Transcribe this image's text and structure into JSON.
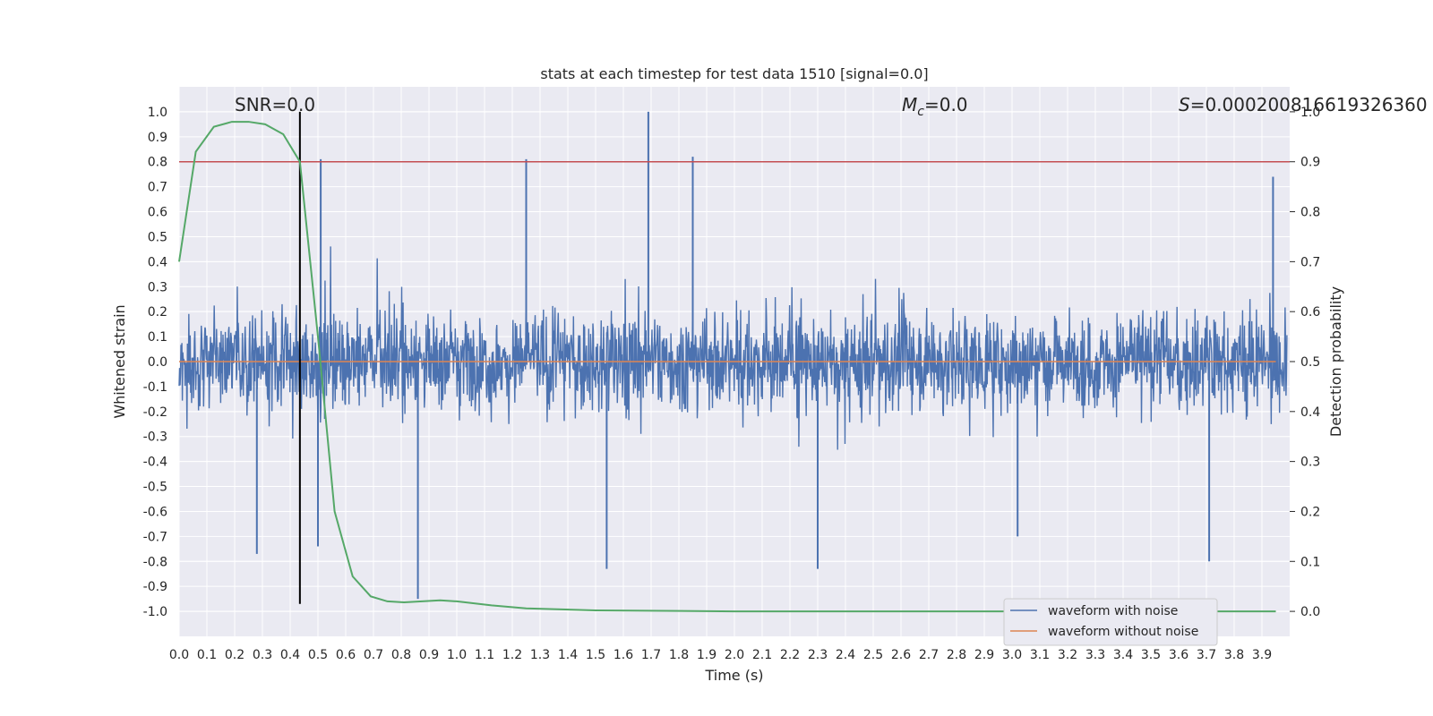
{
  "chart_data": {
    "type": "line",
    "title": "stats at each timestep for test data 1510 [signal=0.0]",
    "xlabel": "Time (s)",
    "ylabel": "Whitened strain",
    "y2label": "Detection probability",
    "xlim": [
      0.0,
      4.0
    ],
    "ylim": [
      -1.1,
      1.1
    ],
    "y2lim": [
      -0.05,
      1.05
    ],
    "x_ticks": [
      "0.0",
      "0.1",
      "0.2",
      "0.3",
      "0.4",
      "0.5",
      "0.6",
      "0.7",
      "0.8",
      "0.9",
      "1.0",
      "1.1",
      "1.2",
      "1.3",
      "1.4",
      "1.5",
      "1.6",
      "1.7",
      "1.8",
      "1.9",
      "2.0",
      "2.1",
      "2.2",
      "2.3",
      "2.4",
      "2.5",
      "2.6",
      "2.7",
      "2.8",
      "2.9",
      "3.0",
      "3.1",
      "3.2",
      "3.3",
      "3.4",
      "3.5",
      "3.6",
      "3.7",
      "3.8",
      "3.9"
    ],
    "y_ticks": [
      "1.0",
      "0.9",
      "0.8",
      "0.7",
      "0.6",
      "0.5",
      "0.4",
      "0.3",
      "0.2",
      "0.1",
      "0.0",
      "-0.1",
      "-0.2",
      "-0.3",
      "-0.4",
      "-0.5",
      "-0.6",
      "-0.7",
      "-0.8",
      "-0.9",
      "-1.0"
    ],
    "y2_ticks": [
      "1.0",
      "0.9",
      "0.8",
      "0.7",
      "0.6",
      "0.5",
      "0.4",
      "0.3",
      "0.2",
      "0.1",
      "0.0"
    ],
    "grid": true,
    "legend_position": "lower-right",
    "annotations": {
      "snr": "SNR=0.0",
      "mc": "M",
      "mc_sub": "c",
      "mc_value": "=0.0",
      "s_symbol": "S",
      "s_value": "=0.000200816619326360"
    },
    "series": [
      {
        "name": "waveform with noise",
        "color": "#4c72b0",
        "axis": "left",
        "noise_amplitude": [
          -0.95,
          1.0
        ],
        "peaks": [
          {
            "x": 1.69,
            "y": 1.0
          },
          {
            "x": 1.25,
            "y": 0.81
          },
          {
            "x": 1.85,
            "y": 0.82
          },
          {
            "x": 0.51,
            "y": 0.81
          },
          {
            "x": 3.94,
            "y": 0.74
          },
          {
            "x": 0.86,
            "y": -0.95
          },
          {
            "x": 2.3,
            "y": -0.83
          },
          {
            "x": 1.54,
            "y": -0.83
          },
          {
            "x": 3.71,
            "y": -0.8
          },
          {
            "x": 0.28,
            "y": -0.77
          },
          {
            "x": 0.5,
            "y": -0.74
          },
          {
            "x": 3.02,
            "y": -0.7
          }
        ]
      },
      {
        "name": "waveform without noise",
        "color": "#dd8452",
        "axis": "left",
        "x": [
          0.0,
          3.95
        ],
        "y": [
          0.0,
          0.0
        ]
      },
      {
        "name": "detection probability",
        "color": "#55a868",
        "axis": "right",
        "x": [
          0.0,
          0.06,
          0.125,
          0.19,
          0.25,
          0.31,
          0.375,
          0.435,
          0.5,
          0.56,
          0.625,
          0.69,
          0.75,
          0.81,
          0.875,
          0.94,
          1.0,
          1.125,
          1.25,
          1.5,
          2.0,
          3.0,
          3.95
        ],
        "y": [
          0.7,
          0.92,
          0.97,
          0.98,
          0.98,
          0.975,
          0.955,
          0.9,
          0.55,
          0.2,
          0.07,
          0.03,
          0.02,
          0.018,
          0.02,
          0.022,
          0.02,
          0.012,
          0.006,
          0.002,
          0.0,
          0.0,
          0.0
        ]
      }
    ],
    "reference_lines": [
      {
        "name": "threshold",
        "color": "#c44e52",
        "axis": "right",
        "y": 0.9
      },
      {
        "name": "detection time",
        "color": "#000000",
        "axis": "left",
        "x": 0.435,
        "y_range": [
          -0.97,
          1.0
        ]
      }
    ]
  }
}
